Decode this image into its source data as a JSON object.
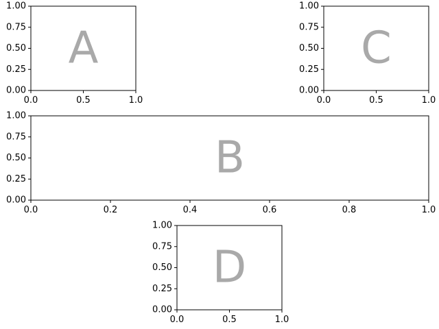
{
  "figure": {
    "background": "#ffffff"
  },
  "chart_data": [
    {
      "type": "scatter",
      "panel": "A",
      "label": "A",
      "label_color": "#a9a9a9",
      "xlim": [
        0.0,
        1.0
      ],
      "ylim": [
        0.0,
        1.0
      ],
      "xticks": [
        "0.0",
        "0.5",
        "1.0"
      ],
      "yticks": [
        "0.00",
        "0.25",
        "0.50",
        "0.75",
        "1.00"
      ],
      "series": [],
      "grid": false
    },
    {
      "type": "scatter",
      "panel": "C",
      "label": "C",
      "label_color": "#a9a9a9",
      "xlim": [
        0.0,
        1.0
      ],
      "ylim": [
        0.0,
        1.0
      ],
      "xticks": [
        "0.0",
        "0.5",
        "1.0"
      ],
      "yticks": [
        "0.00",
        "0.25",
        "0.50",
        "0.75",
        "1.00"
      ],
      "series": [],
      "grid": false
    },
    {
      "type": "scatter",
      "panel": "B",
      "label": "B",
      "label_color": "#a9a9a9",
      "xlim": [
        0.0,
        1.0
      ],
      "ylim": [
        0.0,
        1.0
      ],
      "xticks": [
        "0.0",
        "0.2",
        "0.4",
        "0.6",
        "0.8",
        "1.0"
      ],
      "yticks": [
        "0.00",
        "0.25",
        "0.50",
        "0.75",
        "1.00"
      ],
      "series": [],
      "grid": false
    },
    {
      "type": "scatter",
      "panel": "D",
      "label": "D",
      "label_color": "#a9a9a9",
      "xlim": [
        0.0,
        1.0
      ],
      "ylim": [
        0.0,
        1.0
      ],
      "xticks": [
        "0.0",
        "0.5",
        "1.0"
      ],
      "yticks": [
        "0.00",
        "0.25",
        "0.50",
        "0.75",
        "1.00"
      ],
      "series": [],
      "grid": false
    }
  ]
}
